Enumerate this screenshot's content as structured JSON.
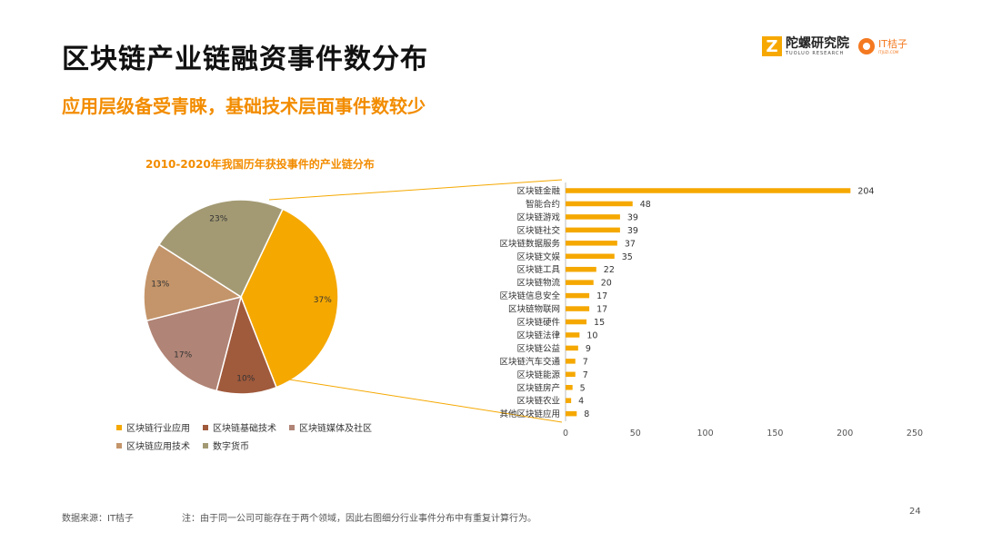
{
  "header": {
    "title": "区块链产业链融资事件数分布",
    "subtitle": "应用层级备受青睐，基础技术层面事件数较少"
  },
  "logos": {
    "brand1_mark": "Z",
    "brand1_name": "陀螺研究院",
    "brand1_sub": "TUOLUO RESEARCH",
    "brand2_name": "IT桔子",
    "brand2_sub": "ITJUZI.COM"
  },
  "colors": {
    "accent": "#f28c00",
    "bar": "#f5a800"
  },
  "chart_data": [
    {
      "type": "pie",
      "title": "2010-2020年我国历年获投事件的产业链分布",
      "labels": [
        "区块链行业应用",
        "区块链基础技术",
        "区块链媒体及社区",
        "区块链应用技术",
        "数字货币"
      ],
      "values": [
        37,
        10,
        17,
        13,
        23
      ],
      "value_labels": [
        "37%",
        "10%",
        "17%",
        "13%",
        "23%"
      ],
      "colors": [
        "#f5a800",
        "#a05a3c",
        "#b08476",
        "#c4956a",
        "#a39a74"
      ],
      "legend_position": "bottom-left"
    },
    {
      "type": "bar",
      "orientation": "horizontal",
      "categories": [
        "区块链金融",
        "智能合约",
        "区块链游戏",
        "区块链社交",
        "区块链数据服务",
        "区块链文娱",
        "区块链工具",
        "区块链物流",
        "区块链信息安全",
        "区块链物联网",
        "区块链硬件",
        "区块链法律",
        "区块链公益",
        "区块链汽车交通",
        "区块链能源",
        "区块链房产",
        "区块链农业",
        "其他区块链应用"
      ],
      "values": [
        204,
        48,
        39,
        39,
        37,
        35,
        22,
        20,
        17,
        17,
        15,
        10,
        9,
        7,
        7,
        5,
        4,
        8
      ],
      "xlim": [
        0,
        250
      ],
      "xticks": [
        "0",
        "50",
        "100",
        "150",
        "200",
        "250"
      ],
      "grid": false
    }
  ],
  "footer": {
    "source": "数据来源：IT桔子",
    "note": "注：由于同一公司可能存在于两个领域，因此右图细分行业事件分布中有重复计算行为。",
    "page": "24"
  }
}
